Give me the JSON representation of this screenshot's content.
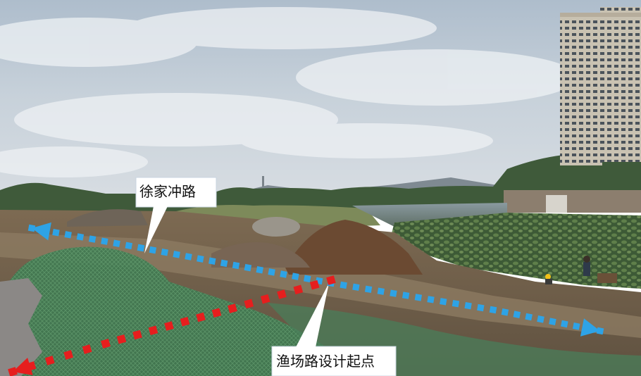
{
  "labels": {
    "xujiachong_road": "徐家冲路",
    "yuchang_road_start": "渔场路设计起点"
  },
  "colors": {
    "route_existing": "#2ea3e6",
    "route_design": "#e61e1e",
    "callout_bg": "#ffffff"
  }
}
